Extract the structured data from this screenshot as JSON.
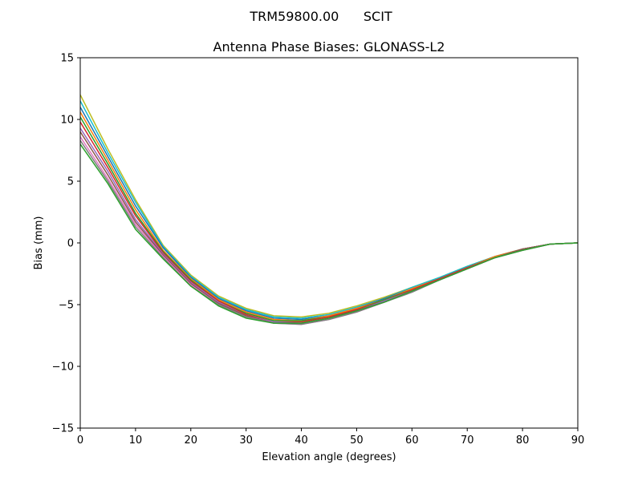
{
  "header": {
    "suptitle": "TRM59800.00      SCIT"
  },
  "chart_data": {
    "type": "line",
    "title": "Antenna Phase Biases: GLONASS-L2",
    "xlabel": "Elevation angle (degrees)",
    "ylabel": "Bias (mm)",
    "xlim": [
      0,
      90
    ],
    "ylim": [
      -15,
      15
    ],
    "xticks": [
      0,
      10,
      20,
      30,
      40,
      50,
      60,
      70,
      80,
      90
    ],
    "yticks": [
      -15,
      -10,
      -5,
      0,
      5,
      10,
      15
    ],
    "xtick_labels": [
      "0",
      "10",
      "20",
      "30",
      "40",
      "50",
      "60",
      "70",
      "80",
      "90"
    ],
    "ytick_labels": [
      "−15",
      "−10",
      "−5",
      "0",
      "5",
      "10",
      "15"
    ],
    "grid": false,
    "legend": "none",
    "x": [
      0,
      5,
      10,
      15,
      20,
      25,
      30,
      35,
      40,
      45,
      50,
      55,
      60,
      65,
      70,
      75,
      80,
      85,
      90
    ],
    "series": [
      {
        "color": "#bcbd22",
        "values": [
          12.0,
          7.6,
          3.5,
          -0.2,
          -2.6,
          -4.3,
          -5.3,
          -5.9,
          -6.0,
          -5.7,
          -5.1,
          -4.4,
          -3.6,
          -2.8,
          -1.9,
          -1.1,
          -0.5,
          -0.1,
          0.0
        ]
      },
      {
        "color": "#17becf",
        "values": [
          11.5,
          7.3,
          3.3,
          -0.3,
          -2.7,
          -4.4,
          -5.4,
          -6.0,
          -6.1,
          -5.8,
          -5.2,
          -4.5,
          -3.6,
          -2.8,
          -1.9,
          -1.1,
          -0.5,
          -0.1,
          0.0
        ]
      },
      {
        "color": "#1f77b4",
        "values": [
          11.0,
          7.0,
          3.0,
          -0.4,
          -2.8,
          -4.5,
          -5.5,
          -6.1,
          -6.2,
          -5.9,
          -5.3,
          -4.5,
          -3.7,
          -2.9,
          -2.0,
          -1.1,
          -0.5,
          -0.1,
          0.0
        ]
      },
      {
        "color": "#ff7f0e",
        "values": [
          10.6,
          6.7,
          2.7,
          -0.6,
          -2.9,
          -4.6,
          -5.6,
          -6.2,
          -6.3,
          -5.9,
          -5.3,
          -4.6,
          -3.7,
          -2.9,
          -2.0,
          -1.1,
          -0.5,
          -0.1,
          0.0
        ]
      },
      {
        "color": "#2ca02c",
        "values": [
          10.2,
          6.4,
          2.4,
          -0.7,
          -3.0,
          -4.7,
          -5.7,
          -6.3,
          -6.3,
          -6.0,
          -5.4,
          -4.6,
          -3.8,
          -2.9,
          -2.0,
          -1.2,
          -0.5,
          -0.1,
          0.0
        ]
      },
      {
        "color": "#d62728",
        "values": [
          9.8,
          6.1,
          2.2,
          -0.8,
          -3.1,
          -4.7,
          -5.8,
          -6.4,
          -6.4,
          -6.0,
          -5.4,
          -4.7,
          -3.8,
          -2.9,
          -2.0,
          -1.2,
          -0.5,
          -0.1,
          0.0
        ]
      },
      {
        "color": "#9467bd",
        "values": [
          9.3,
          5.8,
          1.9,
          -0.9,
          -3.2,
          -4.8,
          -5.9,
          -6.4,
          -6.5,
          -6.1,
          -5.5,
          -4.7,
          -3.9,
          -3.0,
          -2.1,
          -1.2,
          -0.5,
          -0.1,
          0.0
        ]
      },
      {
        "color": "#8c564b",
        "values": [
          9.0,
          5.5,
          1.7,
          -1.0,
          -3.3,
          -4.9,
          -5.9,
          -6.5,
          -6.5,
          -6.1,
          -5.5,
          -4.8,
          -3.9,
          -3.0,
          -2.1,
          -1.2,
          -0.5,
          -0.1,
          0.0
        ]
      },
      {
        "color": "#e377c2",
        "values": [
          8.6,
          5.2,
          1.5,
          -1.1,
          -3.4,
          -5.0,
          -6.0,
          -6.5,
          -6.6,
          -6.2,
          -5.6,
          -4.8,
          -3.9,
          -3.0,
          -2.1,
          -1.2,
          -0.6,
          -0.1,
          0.0
        ]
      },
      {
        "color": "#7f7f7f",
        "values": [
          8.3,
          5.0,
          1.3,
          -1.2,
          -3.5,
          -5.0,
          -6.0,
          -6.5,
          -6.6,
          -6.2,
          -5.6,
          -4.8,
          -4.0,
          -3.0,
          -2.1,
          -1.2,
          -0.6,
          -0.1,
          0.0
        ]
      },
      {
        "color": "#2ca02c",
        "values": [
          8.0,
          4.8,
          1.1,
          -1.3,
          -3.5,
          -5.1,
          -6.1,
          -6.5,
          -6.5,
          -6.1,
          -5.5,
          -4.8,
          -3.9,
          -3.0,
          -2.1,
          -1.2,
          -0.6,
          -0.1,
          0.0
        ]
      }
    ]
  }
}
